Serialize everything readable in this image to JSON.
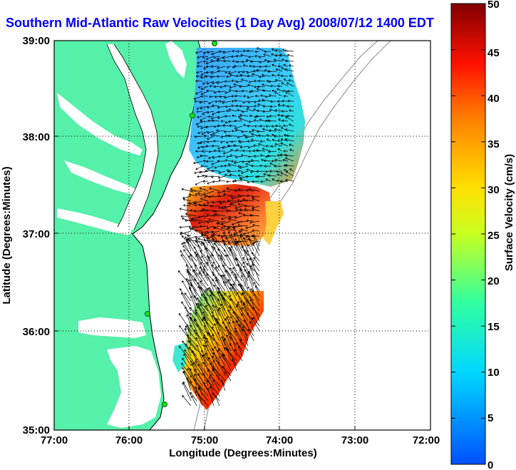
{
  "title": "Southern Mid-Atlantic Raw Velocities (1 Day Avg) 2008/07/12 1400 EDT",
  "x_axis": {
    "label": "Longitude (Degrees:Minutes)",
    "ticks": [
      "77:00",
      "76:00",
      "75:00",
      "74:00",
      "73:00",
      "72:00"
    ]
  },
  "y_axis": {
    "label": "Latitude (Degrees:Minutes)",
    "ticks": [
      "39:00",
      "38:00",
      "37:00",
      "36:00",
      "35:00"
    ]
  },
  "colorbar": {
    "label": "Surface Velocity (cm/s)",
    "ticks": [
      "50",
      "45",
      "40",
      "35",
      "30",
      "25",
      "20",
      "15",
      "10",
      "5",
      "0"
    ],
    "min": 0,
    "max": 50,
    "colormap": "jet"
  },
  "colors": {
    "land": "#55f0a9",
    "title": "#0000ff",
    "bathymetry": "#9a9a9a",
    "station": "#22dd22"
  },
  "grid": true
}
